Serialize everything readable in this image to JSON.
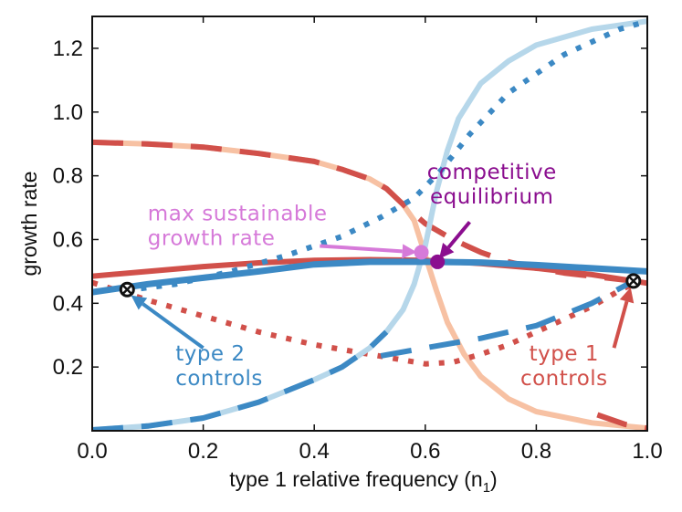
{
  "chart_data": {
    "type": "line",
    "title": "",
    "xlabel_main": "type 1 relative frequency (n",
    "xlabel_sub": "1",
    "xlabel_close": ")",
    "ylabel": "growth rate",
    "xlim": [
      0.0,
      1.0
    ],
    "ylim": [
      0.0,
      1.3
    ],
    "xticks": [
      0.0,
      0.2,
      0.4,
      0.6,
      0.8,
      1.0
    ],
    "xtick_labels": [
      "0.0",
      "0.2",
      "0.4",
      "0.6",
      "0.8",
      "1.0"
    ],
    "yticks": [
      0.2,
      0.4,
      0.6,
      0.8,
      1.0,
      1.2
    ],
    "ytick_labels": [
      "0.2",
      "0.4",
      "0.6",
      "0.8",
      "1.0",
      "1.2"
    ],
    "series": [
      {
        "name": "type1-light",
        "color": "#f7c1a3",
        "style": "solid",
        "width": 6,
        "x": [
          0,
          0.1,
          0.2,
          0.3,
          0.4,
          0.45,
          0.5,
          0.53,
          0.56,
          0.58,
          0.6,
          0.62,
          0.64,
          0.67,
          0.7,
          0.75,
          0.8,
          0.9,
          1.0
        ],
        "y": [
          0.905,
          0.9,
          0.89,
          0.87,
          0.845,
          0.82,
          0.79,
          0.76,
          0.71,
          0.66,
          0.55,
          0.44,
          0.34,
          0.24,
          0.17,
          0.1,
          0.06,
          0.025,
          0.008
        ]
      },
      {
        "name": "type1-dashed-upper",
        "color": "#d1504a",
        "style": "dashlong",
        "width": 6,
        "x": [
          0,
          0.1,
          0.2,
          0.3,
          0.4,
          0.45,
          0.5,
          0.53,
          0.56,
          0.58,
          0.6,
          0.65,
          0.7,
          0.75,
          0.8,
          0.85,
          0.9,
          0.95,
          1.0
        ],
        "y": [
          0.905,
          0.9,
          0.89,
          0.87,
          0.845,
          0.82,
          0.79,
          0.76,
          0.71,
          0.68,
          0.65,
          0.6,
          0.56,
          0.53,
          0.51,
          0.495,
          0.485,
          0.475,
          0.465
        ]
      },
      {
        "name": "type1-dashed-lower",
        "color": "#d1504a",
        "style": "dashlong",
        "width": 6,
        "x": [
          0.91,
          0.96,
          1.0
        ],
        "y": [
          0.05,
          0.02,
          0.008
        ]
      },
      {
        "name": "type1-dotted",
        "color": "#d1504a",
        "style": "dotted",
        "width": 6,
        "x": [
          0,
          0.1,
          0.2,
          0.3,
          0.4,
          0.5,
          0.55,
          0.6,
          0.65,
          0.7,
          0.75,
          0.8,
          0.85,
          0.9,
          0.95,
          0.98
        ],
        "y": [
          0.465,
          0.41,
          0.36,
          0.31,
          0.27,
          0.24,
          0.225,
          0.21,
          0.215,
          0.24,
          0.27,
          0.31,
          0.35,
          0.39,
          0.44,
          0.465
        ]
      },
      {
        "name": "type1-controls-solid",
        "color": "#d1504a",
        "style": "solid",
        "width": 6,
        "x": [
          0,
          0.1,
          0.2,
          0.3,
          0.4,
          0.5,
          0.6,
          0.7,
          0.8,
          0.9,
          1.0
        ],
        "y": [
          0.485,
          0.5,
          0.515,
          0.527,
          0.535,
          0.537,
          0.535,
          0.525,
          0.51,
          0.49,
          0.463
        ]
      },
      {
        "name": "type2-light",
        "color": "#b6d7ea",
        "style": "solid",
        "width": 6,
        "x": [
          0,
          0.1,
          0.2,
          0.3,
          0.4,
          0.45,
          0.5,
          0.53,
          0.56,
          0.58,
          0.6,
          0.62,
          0.64,
          0.66,
          0.7,
          0.75,
          0.8,
          0.9,
          1.0
        ],
        "y": [
          0.003,
          0.015,
          0.04,
          0.09,
          0.16,
          0.2,
          0.26,
          0.31,
          0.38,
          0.46,
          0.58,
          0.75,
          0.88,
          0.98,
          1.09,
          1.16,
          1.21,
          1.26,
          1.285
        ]
      },
      {
        "name": "type2-dashed-lower",
        "color": "#3c89c4",
        "style": "dashlong",
        "width": 6,
        "x": [
          0,
          0.1,
          0.2,
          0.3,
          0.4,
          0.45,
          0.5,
          0.53
        ],
        "y": [
          0.003,
          0.015,
          0.04,
          0.09,
          0.16,
          0.2,
          0.26,
          0.31
        ]
      },
      {
        "name": "type2-dashed-upper",
        "color": "#3c89c4",
        "style": "dashlong",
        "width": 6,
        "x": [
          0.52,
          0.6,
          0.7,
          0.8,
          0.9,
          0.97
        ],
        "y": [
          0.235,
          0.26,
          0.29,
          0.33,
          0.4,
          0.465
        ]
      },
      {
        "name": "type2-dotted",
        "color": "#3c89c4",
        "style": "dotted",
        "width": 6,
        "x": [
          0.06,
          0.15,
          0.25,
          0.35,
          0.45,
          0.52,
          0.58,
          0.63,
          0.68,
          0.75,
          0.85,
          0.95,
          1.0
        ],
        "y": [
          0.44,
          0.46,
          0.5,
          0.55,
          0.61,
          0.67,
          0.73,
          0.82,
          0.93,
          1.06,
          1.18,
          1.26,
          1.285
        ]
      },
      {
        "name": "type2-controls-solid",
        "color": "#3c89c4",
        "style": "solid",
        "width": 7,
        "x": [
          0,
          0.1,
          0.2,
          0.3,
          0.4,
          0.5,
          0.6,
          0.7,
          0.8,
          0.9,
          1.0
        ],
        "y": [
          0.435,
          0.46,
          0.48,
          0.5,
          0.522,
          0.53,
          0.53,
          0.528,
          0.52,
          0.51,
          0.5
        ]
      }
    ],
    "markers": [
      {
        "name": "type-2-controls-point",
        "x": 0.063,
        "y": 0.443,
        "color": "#111111",
        "kind": "x-circle"
      },
      {
        "name": "type-1-controls-point",
        "x": 0.975,
        "y": 0.47,
        "color": "#111111",
        "kind": "x-circle"
      },
      {
        "name": "max-sustainable-point",
        "x": 0.593,
        "y": 0.56,
        "color": "#d67ad9",
        "kind": "dot"
      },
      {
        "name": "competitive-equilibrium-point",
        "x": 0.622,
        "y": 0.53,
        "color": "#8b0e8f",
        "kind": "dot"
      }
    ],
    "annotations": [
      {
        "name": "max-sustainable-label",
        "lines": [
          "max sustainable",
          "growth rate"
        ],
        "color": "#d67ad9",
        "text_x": 0.1,
        "text_y": 0.66,
        "anchor": "start",
        "arrow_from": [
          0.41,
          0.58
        ],
        "arrow_to": [
          0.585,
          0.56
        ]
      },
      {
        "name": "competitive-equilibrium-label",
        "lines": [
          "competitive",
          "equilibrium"
        ],
        "color": "#8b0e8f",
        "text_x": 0.72,
        "text_y": 0.79,
        "anchor": "middle",
        "arrow_from": [
          0.68,
          0.655
        ],
        "arrow_to": [
          0.625,
          0.54
        ]
      },
      {
        "name": "type-2-controls-label",
        "lines": [
          "type 2",
          "controls"
        ],
        "color": "#3c89c4",
        "text_x": 0.15,
        "text_y": 0.22,
        "anchor": "start",
        "arrow_from": [
          0.2,
          0.26
        ],
        "arrow_to": [
          0.07,
          0.425
        ]
      },
      {
        "name": "type-1-controls-label",
        "lines": [
          "type 1",
          "controls"
        ],
        "color": "#d1504a",
        "text_x": 0.85,
        "text_y": 0.22,
        "anchor": "middle",
        "arrow_from": [
          0.94,
          0.26
        ],
        "arrow_to": [
          0.97,
          0.45
        ]
      }
    ]
  }
}
